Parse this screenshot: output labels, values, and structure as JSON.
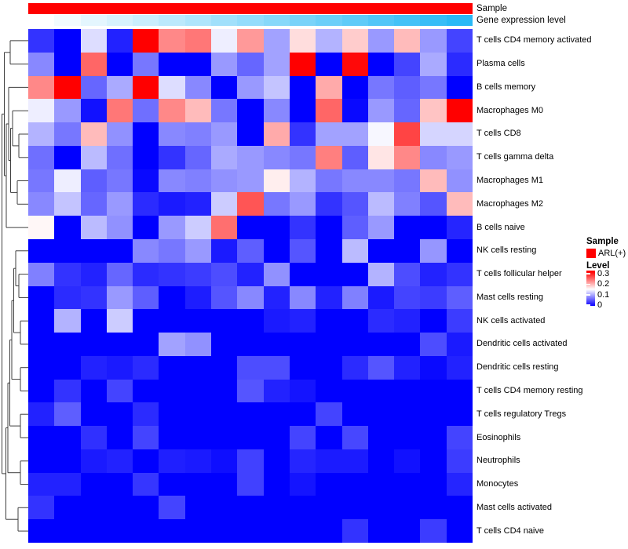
{
  "annotations": {
    "sample_track": {
      "label": "Sample",
      "color": "#ff0000"
    },
    "gene_track": {
      "label": "Gene expression level",
      "gradient_from": "#ffffff",
      "gradient_to": "#29b9f6"
    }
  },
  "legend": {
    "sample": {
      "title": "Sample",
      "item_label": "ARL(+)",
      "item_color": "#ff0000"
    },
    "level": {
      "title": "Level",
      "ticks": [
        "0.3",
        "0.2",
        "0.1",
        "0"
      ],
      "top_color": "#ff0000",
      "mid_color": "#ffffff",
      "bottom_color": "#0000ff"
    }
  },
  "chart_data": {
    "type": "heatmap",
    "title": "",
    "rows": [
      "T cells CD4 memory activated",
      "Plasma cells",
      "B cells memory",
      "Macrophages M0",
      "T cells CD8",
      "T cells gamma delta",
      "Macrophages M1",
      "Macrophages M2",
      "B cells naive",
      "NK cells resting",
      "T cells follicular helper",
      "Mast cells resting",
      "NK cells activated",
      "Dendritic cells activated",
      "Dendritic cells resting",
      "T cells CD4 memory resting",
      "T cells regulatory  Tregs",
      "Eosinophils",
      "Neutrophils",
      "Monocytes",
      "Mast cells activated",
      "T cells CD4 naive"
    ],
    "n_columns": 17,
    "column_annotation_sample_value": "ARL(+)",
    "value_scale": {
      "min": 0,
      "white_point": 0.15,
      "max": 0.3
    },
    "colormap": {
      "low": "#0000ff",
      "mid": "#ffffff",
      "high": "#ff0000"
    },
    "legend_position": "right",
    "values": [
      [
        0.03,
        0,
        0.13,
        0.02,
        0.3,
        0.22,
        0.23,
        0.14,
        0.21,
        0.095,
        0.17,
        0.105,
        0.18,
        0.09,
        0.19,
        0.09,
        0.04
      ],
      [
        0.08,
        0,
        0.24,
        0,
        0.07,
        0,
        0,
        0.09,
        0.06,
        0.095,
        0.3,
        0,
        0.295,
        0,
        0.04,
        0.1,
        0.025
      ],
      [
        0.22,
        0.3,
        0.06,
        0.1,
        0.3,
        0.13,
        0.08,
        0,
        0.09,
        0.115,
        0,
        0.2,
        0,
        0.07,
        0.055,
        0.07,
        0
      ],
      [
        0.14,
        0.09,
        0.01,
        0.23,
        0.065,
        0.22,
        0.19,
        0.07,
        0,
        0.08,
        0,
        0.24,
        0.005,
        0.09,
        0.06,
        0.185,
        0.3
      ],
      [
        0.105,
        0.07,
        0.19,
        0.085,
        0,
        0.08,
        0.075,
        0.09,
        0,
        0.2,
        0.03,
        0.095,
        0.095,
        0.145,
        0.26,
        0.125,
        0.125
      ],
      [
        0.065,
        0,
        0.11,
        0.065,
        0,
        0.03,
        0.06,
        0.1,
        0.09,
        0.08,
        0.07,
        0.225,
        0.055,
        0.165,
        0.22,
        0.08,
        0.09
      ],
      [
        0.07,
        0.14,
        0.055,
        0.07,
        0.005,
        0.08,
        0.075,
        0.085,
        0.09,
        0.16,
        0.105,
        0.07,
        0.08,
        0.08,
        0.07,
        0.19,
        0.085
      ],
      [
        0.08,
        0.115,
        0.06,
        0.09,
        0.025,
        0.015,
        0.02,
        0.12,
        0.25,
        0.07,
        0.09,
        0.03,
        0.05,
        0.11,
        0.075,
        0.05,
        0.19
      ],
      [
        0.155,
        0,
        0.11,
        0.085,
        0,
        0.09,
        0.12,
        0.235,
        0,
        0,
        0.03,
        0,
        0.055,
        0.09,
        0,
        0,
        0.022
      ],
      [
        0,
        0,
        0,
        0,
        0.08,
        0.07,
        0.09,
        0.015,
        0.055,
        0,
        0.05,
        0,
        0.11,
        0,
        0,
        0.088,
        0
      ],
      [
        0.075,
        0.03,
        0.02,
        0.06,
        0.025,
        0.03,
        0.035,
        0.045,
        0.02,
        0.085,
        0,
        0,
        0,
        0.105,
        0.045,
        0.02,
        0.03
      ],
      [
        0,
        0.025,
        0.03,
        0.09,
        0.055,
        0,
        0.017,
        0.05,
        0.08,
        0.02,
        0.08,
        0.02,
        0.075,
        0.015,
        0.04,
        0.035,
        0.055
      ],
      [
        0,
        0.105,
        0,
        0.12,
        0,
        0,
        0,
        0,
        0,
        0.015,
        0.02,
        0,
        0,
        0.025,
        0.02,
        0,
        0.035
      ],
      [
        0,
        0,
        0,
        0,
        0,
        0.095,
        0.085,
        0,
        0,
        0,
        0,
        0,
        0,
        0,
        0,
        0.045,
        0.015
      ],
      [
        0,
        0,
        0.02,
        0.015,
        0.025,
        0,
        0,
        0,
        0.045,
        0.045,
        0,
        0,
        0.025,
        0.05,
        0.02,
        0.005,
        0.02
      ],
      [
        0,
        0.03,
        0,
        0.04,
        0,
        0,
        0,
        0,
        0.05,
        0.02,
        0.012,
        0,
        0,
        0,
        0,
        0,
        0
      ],
      [
        0.02,
        0.055,
        0,
        0,
        0.025,
        0,
        0,
        0,
        0,
        0,
        0,
        0.04,
        0,
        0,
        0,
        0,
        0
      ],
      [
        0,
        0,
        0.028,
        0,
        0.04,
        0,
        0,
        0,
        0,
        0,
        0.04,
        0,
        0.042,
        0,
        0,
        0,
        0.04
      ],
      [
        0,
        0,
        0.015,
        0.02,
        0,
        0.018,
        0.015,
        0.008,
        0.038,
        0,
        0.022,
        0.016,
        0.016,
        0,
        0.01,
        0,
        0.035
      ],
      [
        0.02,
        0.02,
        0,
        0,
        0.032,
        0,
        0,
        0,
        0.038,
        0,
        0.012,
        0,
        0,
        0,
        0,
        0,
        0.022
      ],
      [
        0.03,
        0,
        0,
        0,
        0,
        0.04,
        0,
        0,
        0,
        0,
        0,
        0,
        0,
        0,
        0,
        0,
        0
      ],
      [
        0,
        0,
        0,
        0,
        0,
        0,
        0,
        0,
        0,
        0,
        0,
        0,
        0.03,
        0,
        0,
        0.035,
        0
      ]
    ],
    "row_dendrogram": {
      "orientation": "left",
      "line_color": "#3f3f3f",
      "brackets": [
        [
          13,
          51.9,
          36,
          81.7,
          36
        ],
        [
          24,
          171.0,
          36,
          200.8,
          36
        ],
        [
          16,
          141.2,
          36,
          185.9,
          24
        ],
        [
          22,
          230.5,
          36,
          260.3,
          36
        ],
        [
          13.5,
          163.5,
          16,
          245.4,
          22
        ],
        [
          11,
          111.4,
          36,
          204.5,
          13.5
        ],
        [
          8,
          158.0,
          11,
          290.1,
          36
        ],
        [
          5.5,
          66.8,
          13,
          224.0,
          8
        ],
        [
          24,
          349.6,
          36,
          379.4,
          36
        ],
        [
          20,
          319.8,
          36,
          364.5,
          24
        ],
        [
          26,
          409.2,
          36,
          438.9,
          36
        ],
        [
          17.5,
          342.2,
          20,
          424.1,
          26
        ],
        [
          26,
          468.7,
          36,
          498.5,
          36
        ],
        [
          15,
          383.2,
          17.5,
          483.6,
          26
        ],
        [
          26,
          528.2,
          36,
          558.0,
          36
        ],
        [
          12.5,
          433.4,
          15,
          543.1,
          26
        ],
        [
          26,
          587.8,
          36,
          617.6,
          36
        ],
        [
          10,
          488.3,
          12.5,
          602.7,
          26
        ],
        [
          23,
          647.3,
          36,
          677.1,
          36
        ],
        [
          7.5,
          545.5,
          10,
          662.2,
          23
        ],
        [
          2.5,
          145.4,
          5.5,
          603.9,
          7.5
        ]
      ]
    }
  }
}
